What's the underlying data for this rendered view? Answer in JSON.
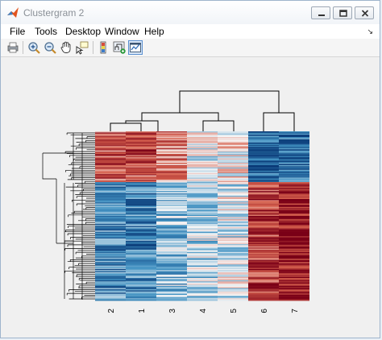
{
  "window": {
    "title": "Clustergram 2"
  },
  "menu": [
    "File",
    "Tools",
    "Desktop",
    "Window",
    "Help"
  ],
  "toolbar": {
    "tools": [
      {
        "name": "print-icon"
      },
      {
        "name": "zoom-in-icon"
      },
      {
        "name": "zoom-out-icon"
      },
      {
        "name": "pan-hand-icon"
      },
      {
        "name": "data-cursor-icon"
      },
      {
        "name": "insert-colorbar-icon"
      },
      {
        "name": "insert-dendrogram-icon"
      },
      {
        "name": "show-plot-tools-icon"
      }
    ]
  },
  "clustergram": {
    "column_labels": [
      "2",
      "1",
      "3",
      "4",
      "5",
      "6",
      "7"
    ],
    "colors": {
      "negative": "#0a3b78",
      "neutral": "#f7f7f7",
      "positive": "#7a0017"
    }
  }
}
